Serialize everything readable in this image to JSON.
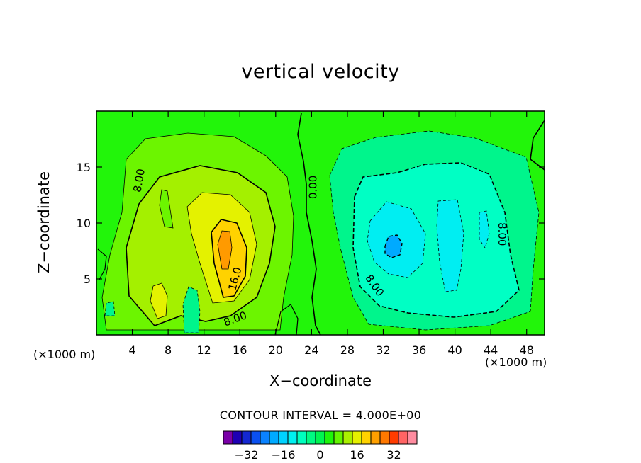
{
  "title": "vertical velocity",
  "xlabel": "X−coordinate",
  "ylabel": "Z−coordinate",
  "x_unit_left": "(×1000 m)",
  "x_unit_right": "(×1000 m)",
  "contour_interval_text": "CONTOUR INTERVAL = 4.000E+00",
  "chart_data": {
    "type": "heatmap",
    "title": "vertical velocity",
    "xlabel": "X-coordinate",
    "ylabel": "Z-coordinate",
    "xlim": [
      0,
      50
    ],
    "ylim": [
      0,
      20
    ],
    "x_ticks": [
      4,
      8,
      12,
      16,
      20,
      24,
      28,
      32,
      36,
      40,
      44,
      48
    ],
    "y_ticks": [
      5,
      10,
      15
    ],
    "x_unit": "(×1000 m)",
    "contour_interval": 4.0,
    "contour_labels": [
      {
        "text": "8.00",
        "x": 4.8,
        "y": 13.8,
        "angle": -80
      },
      {
        "text": "0.00",
        "x": 24.2,
        "y": 13.2,
        "angle": -90
      },
      {
        "text": "16.0",
        "x": 15.5,
        "y": 5.0,
        "angle": -75
      },
      {
        "text": "8.00",
        "x": 15.5,
        "y": 1.4,
        "angle": -20
      },
      {
        "text": "8.00",
        "x": 31.0,
        "y": 4.4,
        "angle": 55
      },
      {
        "text": "8.00",
        "x": 45.2,
        "y": 9.0,
        "angle": 90
      }
    ],
    "features": [
      {
        "kind": "updraft",
        "x": 13.9,
        "y": 7.5,
        "peak": 18
      },
      {
        "kind": "updraft",
        "x": 6.5,
        "y": 3.0,
        "peak": 12
      },
      {
        "kind": "downdraft",
        "x": 33.0,
        "y": 8.2,
        "peak": -22
      },
      {
        "kind": "downdraft",
        "x": 39.0,
        "y": 9.5,
        "peak": -15
      }
    ],
    "colorbar": {
      "labels": [
        "−32",
        "−16",
        "0",
        "16",
        "32"
      ],
      "colors": [
        "#7a00a8",
        "#1e00b4",
        "#1428d2",
        "#0a50f0",
        "#0a82ff",
        "#00aaff",
        "#00d2ff",
        "#00f0f0",
        "#00ffbe",
        "#00fa82",
        "#00f550",
        "#1ef50a",
        "#64f500",
        "#aaf000",
        "#e6f000",
        "#ffd200",
        "#ffa000",
        "#ff7800",
        "#ff3c00",
        "#ff6464",
        "#ff8ca0"
      ]
    }
  }
}
